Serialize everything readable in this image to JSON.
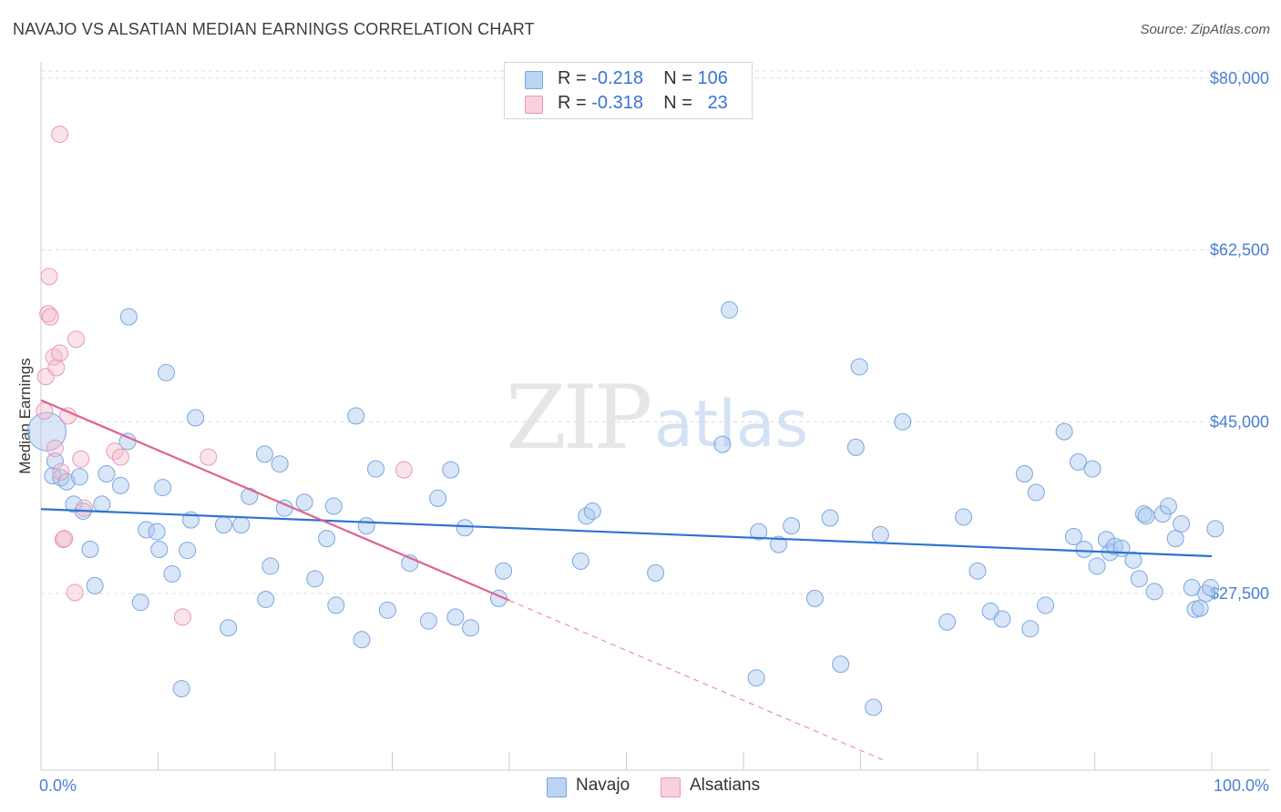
{
  "header": {
    "title": "NAVAJO VS ALSATIAN MEDIAN EARNINGS CORRELATION CHART",
    "source": "Source: ZipAtlas.com"
  },
  "watermark": {
    "zip": "ZIP",
    "atlas": "atlas"
  },
  "legend": {
    "rows": [
      {
        "r_label": "R =",
        "r_value": "-0.218",
        "n_label": "N =",
        "n_value": "106",
        "color": "#a9c8f0"
      },
      {
        "r_label": "R =",
        "r_value": "-0.318",
        "n_label": "N =",
        "n_value": "23",
        "color": "#f5b8cb"
      }
    ]
  },
  "bottom_legend": {
    "navajo": "Navajo",
    "alsatians": "Alsatians"
  },
  "colors": {
    "navajo_fill": "rgba(169,200,240,0.45)",
    "navajo_stroke": "#7aa6e0",
    "navajo_line": "#2f73d1",
    "alsatians_fill": "rgba(245,184,203,0.4)",
    "alsatians_stroke": "#e99ab3",
    "alsatians_line": "#e0628e",
    "axis_label": "#4a7fd4",
    "grid": "#dcdcdc"
  },
  "chart_data": {
    "type": "scatter",
    "title": "NAVAJO VS ALSATIAN MEDIAN EARNINGS CORRELATION CHART",
    "xlabel": "",
    "ylabel": "Median Earnings",
    "xlim": [
      0,
      100
    ],
    "ylim": [
      10000,
      82000
    ],
    "x_tick_labels": [
      "0.0%",
      "100.0%"
    ],
    "y_ticks": [
      27500,
      45000,
      62500,
      80000
    ],
    "y_tick_labels": [
      "$27,500",
      "$45,000",
      "$62,500",
      "$80,000"
    ],
    "grid": "horizontal dashed",
    "legend_position": "top-center",
    "series": [
      {
        "name": "Navajo",
        "r": -0.218,
        "n": 106,
        "trend": {
          "x": [
            0,
            100
          ],
          "y": [
            36100,
            31300
          ]
        },
        "points": [
          [
            0.5,
            44000
          ],
          [
            1.0,
            39500
          ],
          [
            1.2,
            41000
          ],
          [
            1.7,
            39300
          ],
          [
            2.2,
            38900
          ],
          [
            2.8,
            36600
          ],
          [
            3.3,
            39400
          ],
          [
            3.6,
            35900
          ],
          [
            4.2,
            32000
          ],
          [
            4.6,
            28300
          ],
          [
            5.2,
            36600
          ],
          [
            5.6,
            39700
          ],
          [
            6.8,
            38500
          ],
          [
            7.4,
            43000
          ],
          [
            7.5,
            55700
          ],
          [
            8.5,
            26600
          ],
          [
            9.0,
            34000
          ],
          [
            9.9,
            33800
          ],
          [
            10.1,
            32000
          ],
          [
            10.4,
            38300
          ],
          [
            10.7,
            50000
          ],
          [
            11.2,
            29500
          ],
          [
            12.0,
            17800
          ],
          [
            12.5,
            31900
          ],
          [
            12.8,
            35000
          ],
          [
            13.2,
            45400
          ],
          [
            15.6,
            34500
          ],
          [
            16.0,
            24000
          ],
          [
            17.1,
            34500
          ],
          [
            17.8,
            37400
          ],
          [
            19.1,
            41700
          ],
          [
            19.2,
            26900
          ],
          [
            19.6,
            30300
          ],
          [
            20.4,
            40700
          ],
          [
            20.8,
            36200
          ],
          [
            22.5,
            36800
          ],
          [
            23.4,
            29000
          ],
          [
            24.4,
            33100
          ],
          [
            25.0,
            36400
          ],
          [
            25.2,
            26300
          ],
          [
            26.9,
            45600
          ],
          [
            27.4,
            22800
          ],
          [
            27.8,
            34400
          ],
          [
            28.6,
            40200
          ],
          [
            29.6,
            25800
          ],
          [
            31.5,
            30600
          ],
          [
            33.1,
            24700
          ],
          [
            33.9,
            37200
          ],
          [
            35.0,
            40100
          ],
          [
            35.4,
            25100
          ],
          [
            36.2,
            34200
          ],
          [
            36.7,
            24000
          ],
          [
            39.1,
            27000
          ],
          [
            39.5,
            29800
          ],
          [
            46.1,
            30800
          ],
          [
            46.6,
            35400
          ],
          [
            47.1,
            35900
          ],
          [
            52.5,
            29600
          ],
          [
            58.2,
            42700
          ],
          [
            58.8,
            56400
          ],
          [
            61.1,
            18900
          ],
          [
            61.3,
            33800
          ],
          [
            63.0,
            32500
          ],
          [
            64.1,
            34400
          ],
          [
            66.1,
            27000
          ],
          [
            67.4,
            35200
          ],
          [
            68.3,
            20300
          ],
          [
            69.6,
            42400
          ],
          [
            69.9,
            50600
          ],
          [
            71.1,
            15900
          ],
          [
            71.7,
            33500
          ],
          [
            73.6,
            45000
          ],
          [
            77.4,
            24600
          ],
          [
            78.8,
            35300
          ],
          [
            80.0,
            29800
          ],
          [
            81.1,
            25700
          ],
          [
            82.1,
            24900
          ],
          [
            84.0,
            39700
          ],
          [
            84.5,
            23900
          ],
          [
            85.0,
            37800
          ],
          [
            85.8,
            26300
          ],
          [
            87.4,
            44000
          ],
          [
            88.2,
            33300
          ],
          [
            88.6,
            40900
          ],
          [
            89.1,
            32000
          ],
          [
            89.8,
            40200
          ],
          [
            90.2,
            30300
          ],
          [
            91.0,
            33000
          ],
          [
            91.3,
            31700
          ],
          [
            91.7,
            32300
          ],
          [
            92.3,
            32100
          ],
          [
            93.3,
            30900
          ],
          [
            93.8,
            29000
          ],
          [
            94.2,
            35600
          ],
          [
            94.4,
            35400
          ],
          [
            95.1,
            27700
          ],
          [
            95.8,
            35600
          ],
          [
            96.3,
            36400
          ],
          [
            96.9,
            33100
          ],
          [
            97.4,
            34600
          ],
          [
            98.3,
            28100
          ],
          [
            98.6,
            25900
          ],
          [
            99.0,
            26000
          ],
          [
            99.5,
            27500
          ],
          [
            99.9,
            28100
          ],
          [
            100.3,
            34100
          ]
        ]
      },
      {
        "name": "Alsatians",
        "r": -0.318,
        "n": 23,
        "trend": {
          "x": [
            0,
            40
          ],
          "y": [
            47200,
            26800
          ]
        },
        "trend_extension": {
          "x": [
            40,
            72
          ],
          "y": [
            26800,
            10500
          ]
        },
        "points": [
          [
            0.3,
            46100
          ],
          [
            0.4,
            49600
          ],
          [
            0.6,
            56000
          ],
          [
            0.7,
            59800
          ],
          [
            0.8,
            55700
          ],
          [
            1.1,
            51600
          ],
          [
            1.2,
            42300
          ],
          [
            1.3,
            50500
          ],
          [
            1.6,
            52000
          ],
          [
            1.7,
            39900
          ],
          [
            1.9,
            33000
          ],
          [
            2.0,
            33100
          ],
          [
            1.6,
            74300
          ],
          [
            2.3,
            45600
          ],
          [
            2.9,
            27600
          ],
          [
            3.0,
            53400
          ],
          [
            3.4,
            41200
          ],
          [
            3.7,
            36200
          ],
          [
            6.3,
            42000
          ],
          [
            6.8,
            41400
          ],
          [
            12.1,
            25100
          ],
          [
            14.3,
            41400
          ],
          [
            31.0,
            40100
          ]
        ]
      }
    ]
  }
}
